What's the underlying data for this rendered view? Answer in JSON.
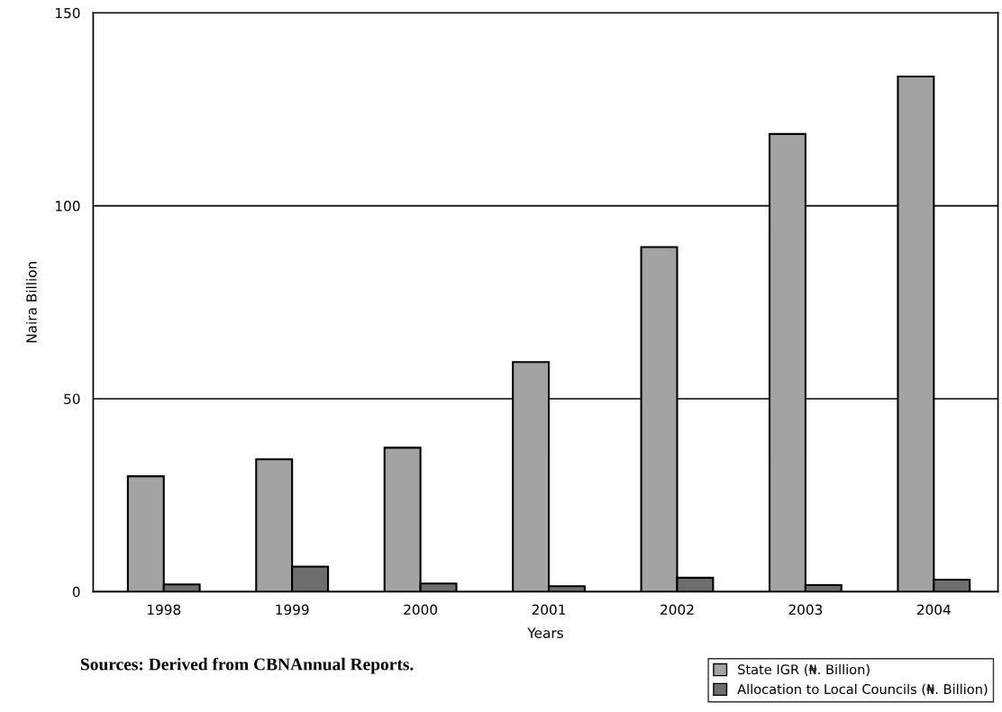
{
  "chart_data": {
    "type": "bar",
    "categories": [
      "1998",
      "1999",
      "2000",
      "2001",
      "2002",
      "2003",
      "2004"
    ],
    "series": [
      {
        "name": "State IGR (₦. Billion)",
        "color": "#a3a3a3",
        "values": [
          29.9,
          34.3,
          37.3,
          59.5,
          89.3,
          118.6,
          133.5
        ]
      },
      {
        "name": "Allocation to Local Councils (₦. Billion)",
        "color": "#6e6e6e",
        "values": [
          1.9,
          6.5,
          2.1,
          1.4,
          3.6,
          1.7,
          3.1
        ]
      }
    ],
    "xlabel": "Years",
    "ylabel": "Naira Billion",
    "ylim": [
      0,
      150
    ],
    "yticks": [
      0,
      50,
      100,
      150
    ],
    "grid": "y",
    "legend": "bottom right",
    "annotations": [
      "Sources: Derived from CBNAnnual Reports."
    ]
  }
}
